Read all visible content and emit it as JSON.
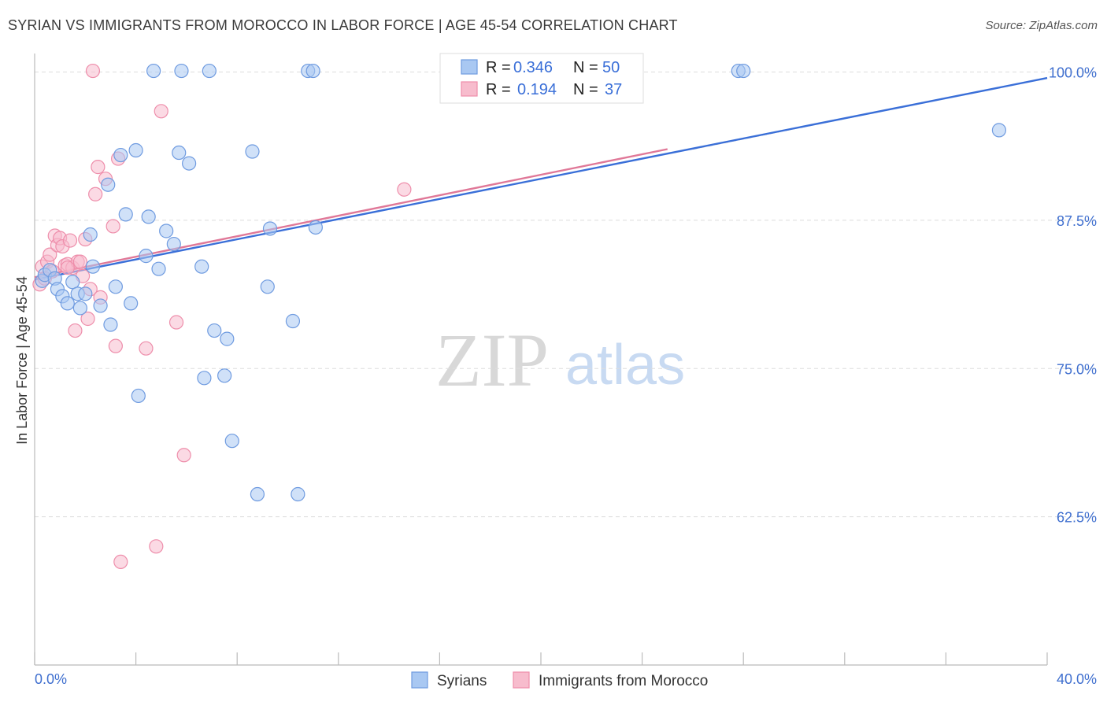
{
  "header": {
    "title": "SYRIAN VS IMMIGRANTS FROM MOROCCO IN LABOR FORCE | AGE 45-54 CORRELATION CHART",
    "source": "Source: ZipAtlas.com"
  },
  "watermark": {
    "zip": "ZIP",
    "atlas": "atlas"
  },
  "colors": {
    "blue_fill": "#a9c8f2",
    "blue_stroke": "#6f9be0",
    "blue_line": "#3a6fd8",
    "pink_fill": "#f7bccd",
    "pink_stroke": "#ee8eab",
    "pink_line": "#e07898",
    "tick_text": "#3f6fcf",
    "grid": "#dddddd"
  },
  "legend": {
    "rows": [
      {
        "r_label": "R =",
        "r_value": "0.346",
        "n_label": "N =",
        "n_value": "50"
      },
      {
        "r_label": "R =",
        "r_value": "0.194",
        "n_label": "N =",
        "n_value": "37"
      }
    ]
  },
  "bottom_legend": {
    "series1": "Syrians",
    "series2": "Immigrants from Morocco"
  },
  "chart_data": {
    "type": "scatter",
    "title": "SYRIAN VS IMMIGRANTS FROM MOROCCO IN LABOR FORCE | AGE 45-54 CORRELATION CHART",
    "xlabel": "",
    "ylabel": "In Labor Force | Age 45-54",
    "xlim": [
      0,
      40
    ],
    "ylim": [
      50,
      100.9
    ],
    "x_tick_labels": [
      "0.0%",
      "40.0%"
    ],
    "y_ticks": [
      {
        "value": 100,
        "label": "100.0%"
      },
      {
        "value": 87.5,
        "label": "87.5%"
      },
      {
        "value": 75,
        "label": "75.0%"
      },
      {
        "value": 62.5,
        "label": "62.5%"
      }
    ],
    "series": [
      {
        "name": "Syrians",
        "r": 0.346,
        "n": 50,
        "trend": {
          "x": [
            0,
            40
          ],
          "y": [
            82.5,
            99.5
          ],
          "dashed_extension": [
            [
              26,
              93.5
            ],
            [
              40,
              99.5
            ]
          ]
        },
        "points": [
          [
            0.3,
            82.4
          ],
          [
            0.4,
            82.9
          ],
          [
            0.6,
            83.3
          ],
          [
            0.8,
            82.6
          ],
          [
            0.9,
            81.7
          ],
          [
            1.1,
            81.1
          ],
          [
            1.3,
            80.5
          ],
          [
            1.5,
            82.3
          ],
          [
            1.7,
            81.3
          ],
          [
            1.8,
            80.1
          ],
          [
            2.0,
            81.3
          ],
          [
            2.2,
            86.3
          ],
          [
            2.3,
            83.6
          ],
          [
            2.6,
            80.3
          ],
          [
            2.9,
            90.5
          ],
          [
            3.0,
            78.7
          ],
          [
            3.2,
            81.9
          ],
          [
            3.4,
            93.0
          ],
          [
            3.6,
            88.0
          ],
          [
            3.8,
            80.5
          ],
          [
            4.0,
            93.4
          ],
          [
            4.1,
            72.7
          ],
          [
            4.4,
            84.5
          ],
          [
            4.5,
            87.8
          ],
          [
            4.7,
            100.1
          ],
          [
            4.9,
            83.4
          ],
          [
            5.2,
            86.6
          ],
          [
            5.5,
            85.5
          ],
          [
            5.7,
            93.2
          ],
          [
            5.8,
            100.1
          ],
          [
            6.1,
            92.3
          ],
          [
            6.6,
            83.6
          ],
          [
            6.7,
            74.2
          ],
          [
            6.9,
            100.1
          ],
          [
            7.1,
            78.2
          ],
          [
            7.5,
            74.4
          ],
          [
            7.6,
            77.5
          ],
          [
            7.8,
            68.9
          ],
          [
            8.6,
            93.3
          ],
          [
            8.8,
            64.4
          ],
          [
            9.2,
            81.9
          ],
          [
            9.3,
            86.8
          ],
          [
            10.2,
            79.0
          ],
          [
            10.4,
            64.4
          ],
          [
            10.8,
            100.1
          ],
          [
            11.0,
            100.1
          ],
          [
            11.1,
            86.9
          ],
          [
            27.8,
            100.1
          ],
          [
            28.0,
            100.1
          ],
          [
            38.1,
            95.1
          ]
        ]
      },
      {
        "name": "Immigrants from Morocco",
        "r": 0.194,
        "n": 37,
        "trend": {
          "x": [
            0,
            25
          ],
          "y": [
            82.7,
            93.5
          ]
        },
        "points": [
          [
            0.2,
            82.1
          ],
          [
            0.3,
            83.6
          ],
          [
            0.5,
            84.0
          ],
          [
            0.6,
            84.6
          ],
          [
            0.7,
            83.2
          ],
          [
            0.8,
            86.2
          ],
          [
            0.9,
            85.4
          ],
          [
            1.0,
            86.0
          ],
          [
            1.1,
            85.3
          ],
          [
            1.2,
            83.7
          ],
          [
            1.3,
            83.8
          ],
          [
            1.4,
            85.8
          ],
          [
            1.5,
            83.5
          ],
          [
            1.6,
            78.2
          ],
          [
            1.7,
            84.0
          ],
          [
            1.8,
            84.0
          ],
          [
            1.9,
            82.8
          ],
          [
            2.0,
            85.9
          ],
          [
            2.1,
            79.2
          ],
          [
            2.2,
            81.7
          ],
          [
            2.3,
            100.1
          ],
          [
            2.4,
            89.7
          ],
          [
            2.5,
            92.0
          ],
          [
            2.6,
            81.0
          ],
          [
            2.8,
            91.0
          ],
          [
            3.1,
            87.0
          ],
          [
            3.2,
            76.9
          ],
          [
            3.3,
            92.7
          ],
          [
            3.4,
            58.7
          ],
          [
            4.4,
            76.7
          ],
          [
            4.8,
            60.0
          ],
          [
            5.0,
            96.7
          ],
          [
            5.6,
            78.9
          ],
          [
            5.9,
            67.7
          ],
          [
            14.6,
            90.1
          ],
          [
            0.4,
            82.6
          ],
          [
            1.3,
            83.5
          ]
        ]
      }
    ]
  }
}
